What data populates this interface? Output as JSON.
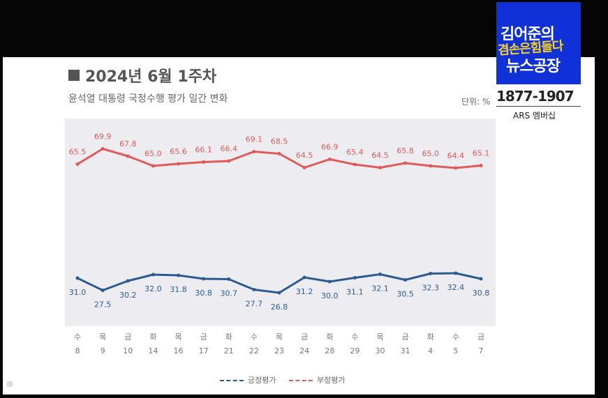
{
  "title": "2024년 6월 1주차",
  "subtitle": "윤석열 대통령 국정수행 평가 일간 변화",
  "unit": "단위: %",
  "logo": {
    "line1": "김어준의",
    "line2": "겸손은힘들다",
    "line3": "뉴스공장",
    "phone": "1877-1907",
    "ars": "ARS 멤버십"
  },
  "colors": {
    "positive": "#2c5a8f",
    "negative": "#e05a5a",
    "plot_bg": "#ececf1"
  },
  "chart_data": {
    "type": "line",
    "categories": [
      {
        "day": "수",
        "date": "8"
      },
      {
        "day": "목",
        "date": "9"
      },
      {
        "day": "금",
        "date": "10"
      },
      {
        "day": "화",
        "date": "14"
      },
      {
        "day": "목",
        "date": "16"
      },
      {
        "day": "금",
        "date": "17"
      },
      {
        "day": "화",
        "date": "21"
      },
      {
        "day": "수",
        "date": "22"
      },
      {
        "day": "목",
        "date": "23"
      },
      {
        "day": "금",
        "date": "24"
      },
      {
        "day": "화",
        "date": "28"
      },
      {
        "day": "수",
        "date": "29"
      },
      {
        "day": "목",
        "date": "30"
      },
      {
        "day": "금",
        "date": "31"
      },
      {
        "day": "화",
        "date": "4"
      },
      {
        "day": "수",
        "date": "5"
      },
      {
        "day": "금",
        "date": "7"
      }
    ],
    "series": [
      {
        "name": "긍정평가",
        "color": "#2c5a8f",
        "values": [
          31.0,
          27.5,
          30.2,
          32.0,
          31.8,
          30.8,
          30.7,
          27.7,
          26.8,
          31.2,
          30.0,
          31.1,
          32.1,
          30.5,
          32.3,
          32.4,
          30.8
        ]
      },
      {
        "name": "부정평가",
        "color": "#e05a5a",
        "values": [
          65.5,
          69.9,
          67.8,
          65.0,
          65.6,
          66.1,
          66.4,
          69.1,
          68.5,
          64.5,
          66.9,
          65.4,
          64.5,
          65.8,
          65.0,
          64.4,
          65.1
        ]
      }
    ],
    "value_labels": {
      "긍정평가": [
        "31.0",
        "27.5",
        "30.2",
        "32.0",
        "31.8",
        "30.8",
        "30.7",
        "27.7",
        "26.8",
        "31.2",
        "30.0",
        "31.1",
        "32.1",
        "30.5",
        "32.3",
        "32.4",
        "30.8"
      ],
      "부정평가": [
        "65.5",
        "69.9",
        "67.8",
        "65.0",
        "65.6",
        "66.1",
        "66.4",
        "69.1",
        "68.5",
        "64.5",
        "66.9",
        "65.4",
        "64.5",
        "65.8",
        "65.0",
        "64.4",
        "65.1"
      ]
    },
    "legend_position": "bottom-center",
    "grid": false
  }
}
